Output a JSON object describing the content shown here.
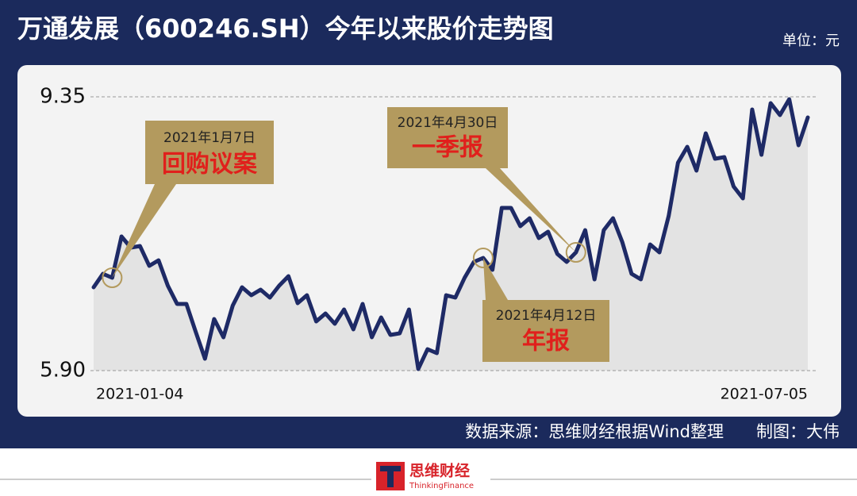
{
  "title": "万通发展（600246.SH）今年以来股价走势图",
  "unit_label": "单位：元",
  "chart_data": {
    "type": "line",
    "categories": [
      "2021-01-04",
      null,
      null,
      null,
      null,
      null,
      null,
      null,
      null,
      null,
      null,
      null,
      null,
      null,
      null,
      null,
      null,
      null,
      null,
      null,
      null,
      null,
      null,
      null,
      null,
      null,
      null,
      null,
      null,
      null,
      null,
      null,
      null,
      null,
      null,
      null,
      null,
      null,
      null,
      null,
      null,
      null,
      null,
      null,
      null,
      null,
      null,
      null,
      null,
      null,
      null,
      null,
      null,
      null,
      null,
      null,
      null,
      null,
      null,
      null,
      null,
      null,
      null,
      null,
      null,
      null,
      null,
      null,
      null,
      null,
      null,
      null,
      null,
      null,
      null,
      null,
      null,
      "2021-07-05"
    ],
    "values": [
      6.95,
      7.12,
      7.07,
      7.59,
      7.45,
      7.47,
      7.22,
      7.29,
      6.97,
      6.74,
      6.74,
      6.39,
      6.05,
      6.55,
      6.32,
      6.72,
      6.95,
      6.85,
      6.92,
      6.82,
      6.97,
      7.09,
      6.75,
      6.85,
      6.52,
      6.62,
      6.49,
      6.67,
      6.42,
      6.74,
      6.32,
      6.57,
      6.35,
      6.37,
      6.67,
      5.92,
      6.17,
      6.12,
      6.85,
      6.82,
      7.07,
      7.27,
      7.32,
      7.17,
      7.95,
      7.95,
      7.72,
      7.82,
      7.57,
      7.65,
      7.37,
      7.27,
      7.39,
      7.67,
      7.05,
      7.67,
      7.82,
      7.52,
      7.12,
      7.05,
      7.49,
      7.39,
      7.85,
      8.52,
      8.72,
      8.42,
      8.89,
      8.57,
      8.59,
      8.22,
      8.07,
      9.19,
      8.62,
      9.27,
      9.12,
      9.32,
      8.74,
      9.09
    ],
    "color": "#1e2a66",
    "area_color": "#e3e3e3",
    "ylim": [
      5.9,
      9.35
    ],
    "yticks": [
      {
        "value": 5.9,
        "label": "5.90"
      },
      9.35
    ],
    "grid": true,
    "annotations": [
      {
        "date": "2021年1月7日",
        "label": "回购议案"
      },
      {
        "date": "2021年4月30日",
        "label": "一季报"
      },
      {
        "date": "2021年4月12日",
        "label": "年报"
      }
    ]
  },
  "source": "数据来源：思维财经根据Wind整理",
  "credit": "制图：大伟",
  "logo": {
    "name": "思维财经",
    "subtitle": "ThinkingFinance"
  }
}
